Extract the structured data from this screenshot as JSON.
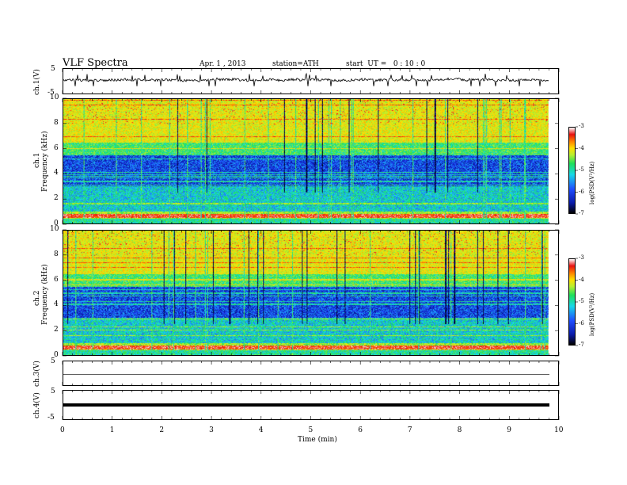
{
  "header": {
    "title": "VLF Spectra",
    "date": "Apr. 1 , 2013",
    "station": "station=ATH",
    "start": "start  UT =   0 : 10 : 0"
  },
  "chart_data": [
    {
      "type": "line",
      "panel": "ch1-waveform",
      "ylabel": "ch.1(V)",
      "yticks": [
        "5",
        "-5"
      ],
      "ylim": [
        -5,
        5
      ]
    },
    {
      "type": "heatmap",
      "panel": "ch1-spectrogram",
      "ylabel_top": "ch.1",
      "ylabel": "Frequency  (kHz)",
      "yticks": [
        "10",
        "8",
        "6",
        "4",
        "2",
        "0"
      ],
      "ylim": [
        0,
        10
      ],
      "colorbar": {
        "label": "log(PSD(V²/Hz)",
        "ticks": [
          "-3",
          "-4",
          "-5",
          "-6",
          "-7"
        ],
        "range": [
          -7,
          -3
        ]
      }
    },
    {
      "type": "heatmap",
      "panel": "ch2-spectrogram",
      "ylabel_top": "ch.2",
      "ylabel": "Frequency  (kHz)",
      "yticks": [
        "10",
        "8",
        "6",
        "4",
        "2",
        "0"
      ],
      "ylim": [
        0,
        10
      ],
      "colorbar": {
        "label": "log(PSD(V²/Hz)",
        "ticks": [
          "-3",
          "-4",
          "-5",
          "-6",
          "-7"
        ],
        "range": [
          -7,
          -3
        ]
      }
    },
    {
      "type": "line",
      "panel": "ch3-waveform",
      "ylabel": "ch.3(V)",
      "yticks": [
        "5"
      ],
      "ylim": [
        -5,
        5
      ]
    },
    {
      "type": "line",
      "panel": "ch4-waveform",
      "ylabel": "ch.4(V)",
      "yticks": [
        "5",
        "-5"
      ],
      "ylim": [
        -5,
        5
      ]
    }
  ],
  "xaxis": {
    "xlabel": "Time  (min)",
    "ticks": [
      "0",
      "1",
      "2",
      "3",
      "4",
      "5",
      "6",
      "7",
      "8",
      "9",
      "10"
    ],
    "xlim": [
      0,
      10
    ]
  },
  "colors": {
    "spectrogram": [
      "#000000",
      "#0a1aa8",
      "#1f4dff",
      "#18d8e8",
      "#1fe05a",
      "#b8f030",
      "#ffe000",
      "#ff8000",
      "#e81010",
      "#ffffff"
    ]
  }
}
